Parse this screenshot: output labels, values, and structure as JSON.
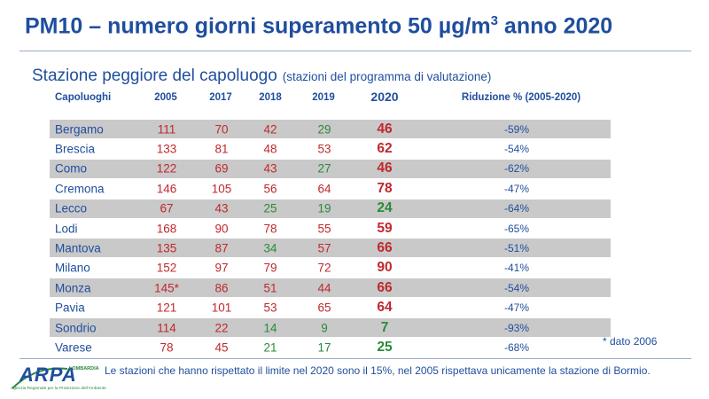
{
  "title": "PM10 – numero giorni superamento 50 µg/m",
  "title_sup": "3",
  "title_suffix": " anno 2020",
  "subtitle": "Stazione peggiore del capoluogo",
  "subtitle_note": "(stazioni del programma di valutazione)",
  "headers": {
    "city": "Capoluoghi",
    "y2005": "2005",
    "y2017": "2017",
    "y2018": "2018",
    "y2019": "2019",
    "y2020": "2020",
    "reduction": "Riduzione % (2005-2020)"
  },
  "colors": {
    "over_limit": "#c0282d",
    "within_limit": "#2a8a3a",
    "brand_blue": "#1f4e9e",
    "row_shade": "#c9c9c9"
  },
  "rows": [
    {
      "city": "Bergamo",
      "v2005": "111",
      "v2017": "70",
      "v2018": "42",
      "v2019": "29",
      "v2020": "46",
      "reduction": "-59%"
    },
    {
      "city": "Brescia",
      "v2005": "133",
      "v2017": "81",
      "v2018": "48",
      "v2019": "53",
      "v2020": "62",
      "reduction": "-54%"
    },
    {
      "city": "Como",
      "v2005": "122",
      "v2017": "69",
      "v2018": "43",
      "v2019": "27",
      "v2020": "46",
      "reduction": "-62%"
    },
    {
      "city": "Cremona",
      "v2005": "146",
      "v2017": "105",
      "v2018": "56",
      "v2019": "64",
      "v2020": "78",
      "reduction": "-47%"
    },
    {
      "city": "Lecco",
      "v2005": "67",
      "v2017": "43",
      "v2018": "25",
      "v2019": "19",
      "v2020": "24",
      "reduction": "-64%"
    },
    {
      "city": "Lodi",
      "v2005": "168",
      "v2017": "90",
      "v2018": "78",
      "v2019": "55",
      "v2020": "59",
      "reduction": "-65%"
    },
    {
      "city": "Mantova",
      "v2005": "135",
      "v2017": "87",
      "v2018": "34",
      "v2019": "57",
      "v2020": "66",
      "reduction": "-51%"
    },
    {
      "city": "Milano",
      "v2005": "152",
      "v2017": "97",
      "v2018": "79",
      "v2019": "72",
      "v2020": "90",
      "reduction": "-41%"
    },
    {
      "city": "Monza",
      "v2005": "145*",
      "v2017": "86",
      "v2018": "51",
      "v2019": "44",
      "v2020": "66",
      "reduction": "-54%"
    },
    {
      "city": "Pavia",
      "v2005": "121",
      "v2017": "101",
      "v2018": "53",
      "v2019": "65",
      "v2020": "64",
      "reduction": "-47%"
    },
    {
      "city": "Sondrio",
      "v2005": "114",
      "v2017": "22",
      "v2018": "14",
      "v2019": "9",
      "v2020": "7",
      "reduction": "-93%"
    },
    {
      "city": "Varese",
      "v2005": "78",
      "v2017": "45",
      "v2018": "21",
      "v2019": "17",
      "v2020": "25",
      "reduction": "-68%"
    }
  ],
  "footnote": "* dato 2006",
  "bottom_text": "Le stazioni che hanno rispettato il limite nel 2020 sono il 15%,  nel 2005 rispettava  unicamente la stazione di Bormio.",
  "logo": {
    "text": "ARPA",
    "region": "LOMBARDIA",
    "tagline": "Agenzia Regionale per la Protezione dell'Ambiente"
  }
}
